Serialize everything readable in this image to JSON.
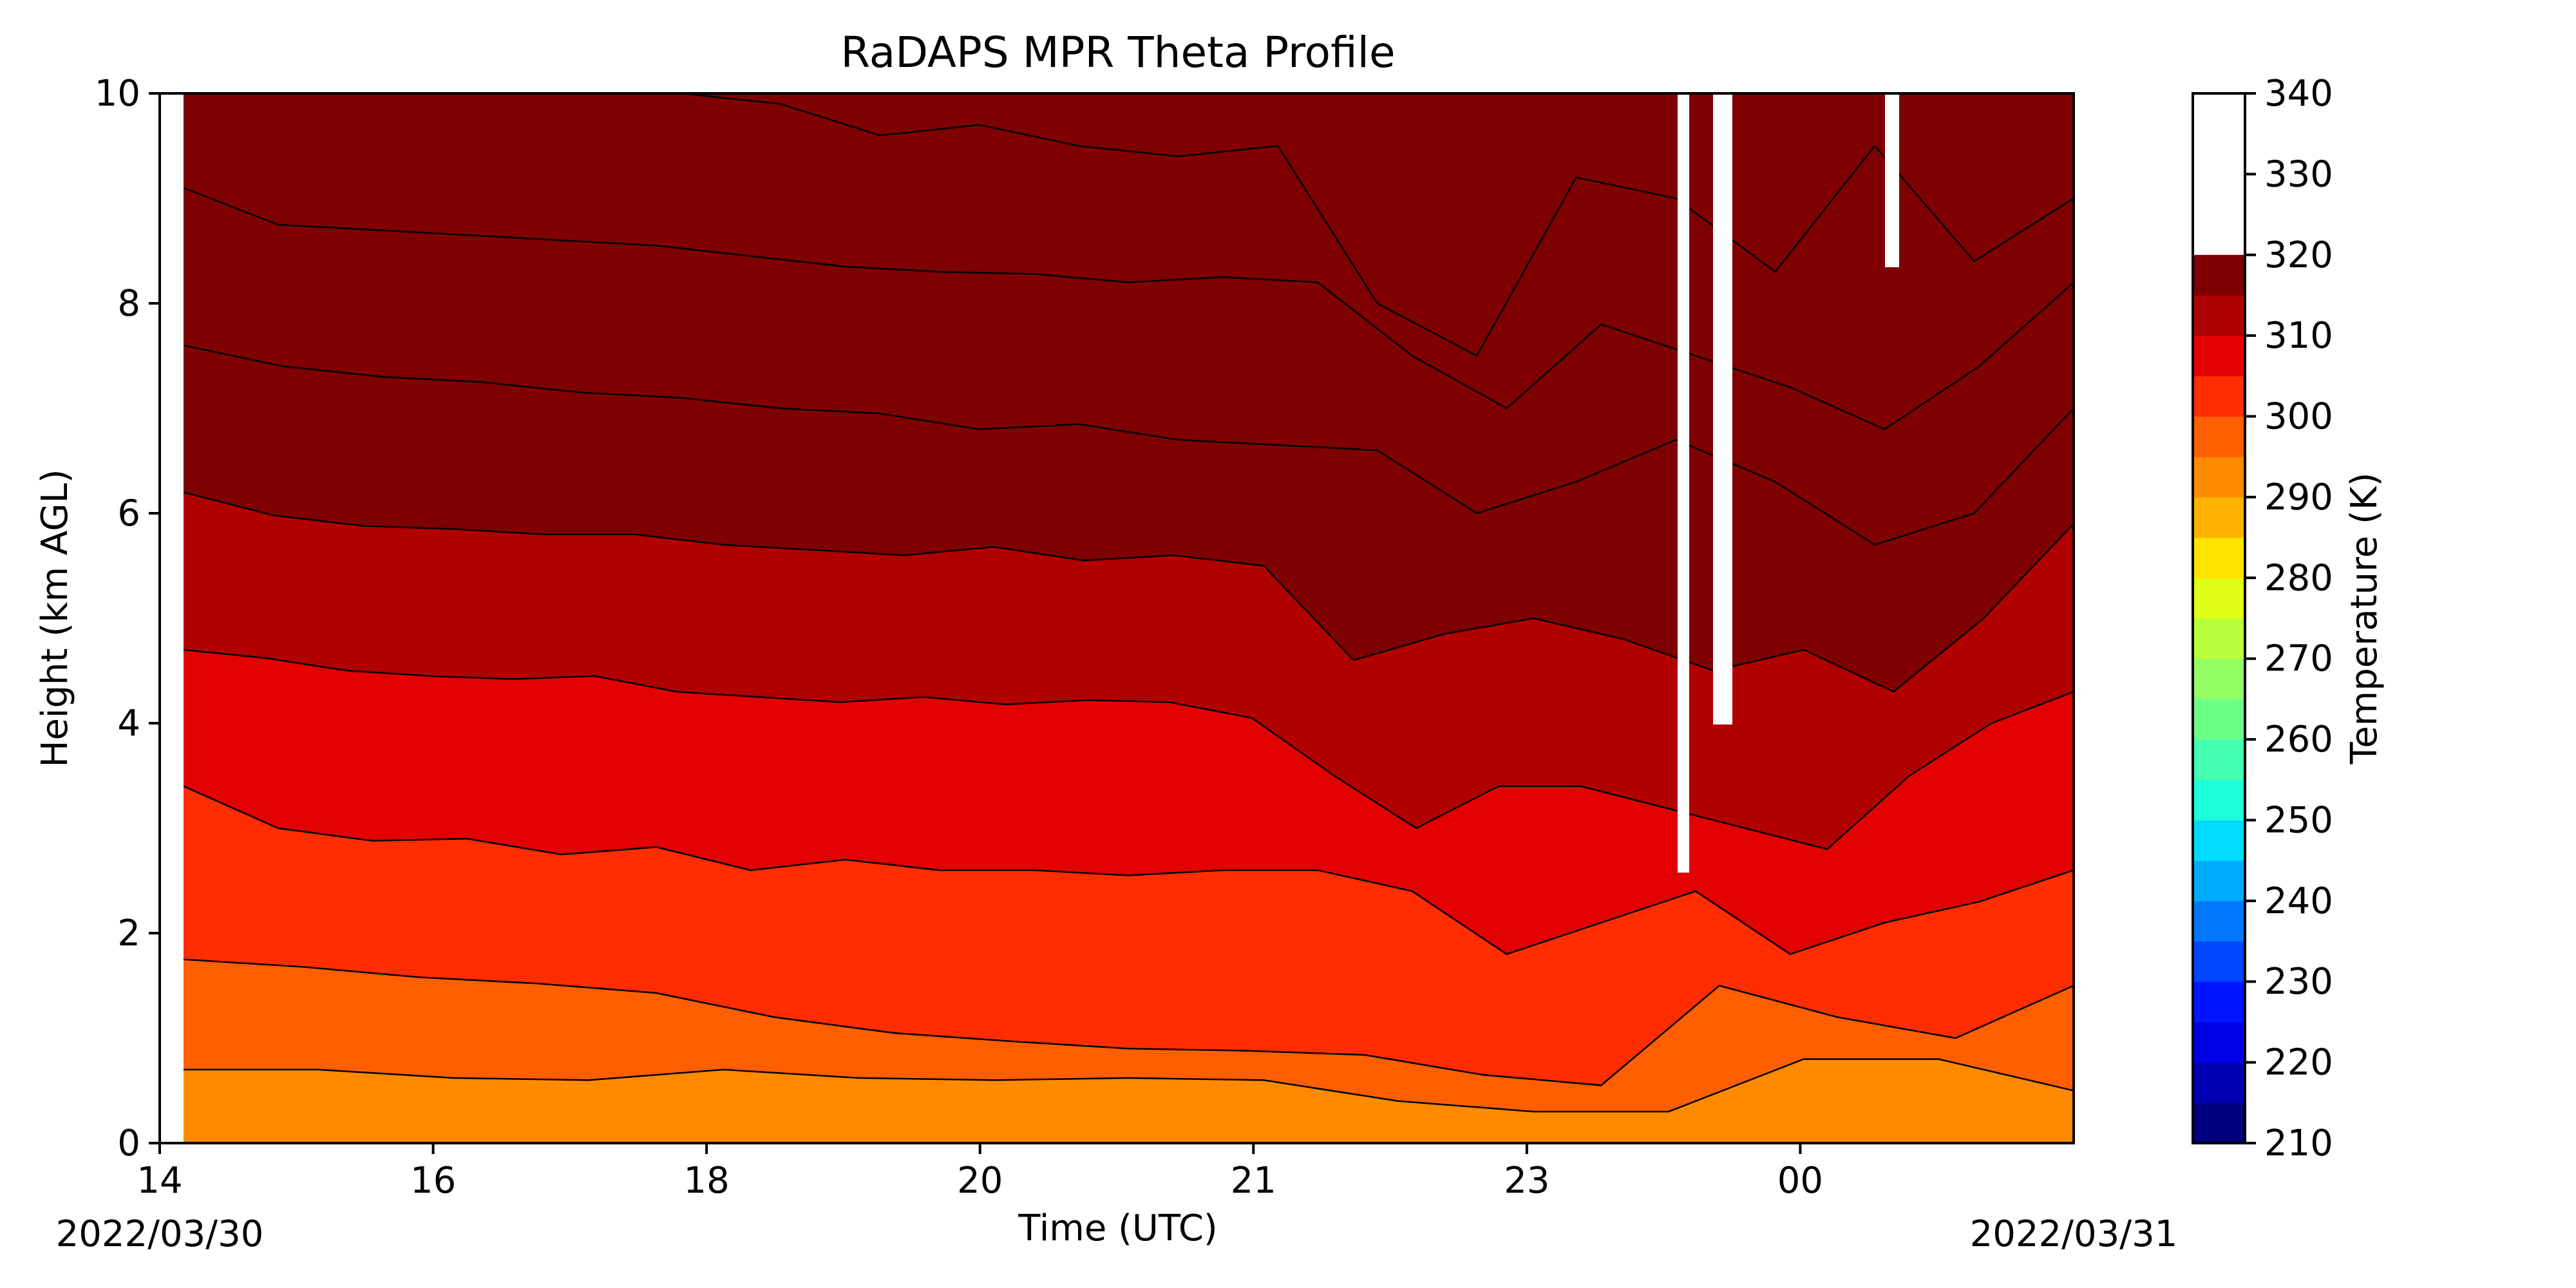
{
  "chart_data": {
    "type": "heatmap",
    "title": "RaDAPS MPR Theta Profile",
    "xlabel": "Time (UTC)",
    "ylabel": "Height (km AGL)",
    "x_ticks": [
      "14",
      "16",
      "18",
      "20",
      "21",
      "23",
      "00"
    ],
    "date_labels": {
      "start": "2022/03/30",
      "end": "2022/03/31"
    },
    "ylim": [
      0,
      10
    ],
    "y_ticks": [
      0,
      2,
      4,
      6,
      8,
      10
    ],
    "colorbar": {
      "label": "Temperature (K)",
      "range": [
        210,
        340
      ],
      "ticks": [
        210,
        220,
        230,
        240,
        250,
        260,
        270,
        280,
        290,
        300,
        310,
        320,
        330,
        340
      ],
      "step": 5,
      "colors": [
        "#00007f",
        "#0000b2",
        "#0000e5",
        "#0014ff",
        "#0045ff",
        "#0079ff",
        "#00abff",
        "#00dcfe",
        "#1dffda",
        "#44ffb2",
        "#6bff8a",
        "#92ff64",
        "#b9ff3c",
        "#e1ff16",
        "#ffe400",
        "#ffb200",
        "#ff8a00",
        "#ff5f00",
        "#ff2d00",
        "#e20000",
        "#b10000",
        "#7f0000"
      ]
    },
    "grid": false,
    "series": [
      {
        "level": 295,
        "height_km": [
          0.7,
          0.7,
          0.62,
          0.6,
          0.7,
          0.62,
          0.6,
          0.62,
          0.6,
          0.4,
          0.3,
          0.3,
          0.8,
          0.8,
          0.5
        ]
      },
      {
        "level": 300,
        "height_km": [
          1.75,
          1.68,
          1.58,
          1.52,
          1.43,
          1.2,
          1.05,
          0.97,
          0.9,
          0.88,
          0.84,
          0.65,
          0.55,
          1.5,
          1.2,
          1.0,
          1.5
        ]
      },
      {
        "level": 305,
        "height_km": [
          3.4,
          3.0,
          2.88,
          2.9,
          2.75,
          2.82,
          2.6,
          2.7,
          2.6,
          2.6,
          2.55,
          2.6,
          2.6,
          2.4,
          1.8,
          2.1,
          2.4,
          1.8,
          2.1,
          2.3,
          2.6
        ]
      },
      {
        "level": 310,
        "height_km": [
          4.7,
          4.62,
          4.5,
          4.45,
          4.42,
          4.45,
          4.3,
          4.25,
          4.2,
          4.25,
          4.18,
          4.22,
          4.2,
          4.05,
          3.5,
          3.0,
          3.4,
          3.4,
          3.2,
          3.0,
          2.8,
          3.5,
          4.0,
          4.3
        ]
      },
      {
        "level": 315,
        "height_km": [
          6.2,
          5.98,
          5.88,
          5.85,
          5.8,
          5.8,
          5.7,
          5.65,
          5.6,
          5.68,
          5.55,
          5.6,
          5.5,
          4.6,
          4.85,
          5.0,
          4.8,
          4.5,
          4.7,
          4.3,
          5.0,
          5.9
        ]
      },
      {
        "level": 320,
        "height_km": [
          7.6,
          7.4,
          7.3,
          7.25,
          7.15,
          7.1,
          7.0,
          6.95,
          6.8,
          6.85,
          6.7,
          6.65,
          6.6,
          6.0,
          6.3,
          6.7,
          6.3,
          5.7,
          6.0,
          7.0
        ]
      },
      {
        "level": 325,
        "height_km": [
          9.1,
          8.75,
          8.7,
          8.65,
          8.6,
          8.55,
          8.45,
          8.35,
          8.3,
          8.28,
          8.2,
          8.25,
          8.2,
          7.5,
          7.0,
          7.8,
          7.5,
          7.2,
          6.8,
          7.4,
          8.2
        ]
      },
      {
        "level": 330,
        "height_km": [
          10.0,
          10.0,
          10.0,
          10.0,
          10.0,
          10.0,
          9.9,
          9.6,
          9.7,
          9.5,
          9.4,
          9.5,
          8.0,
          7.5,
          9.2,
          9.0,
          8.3,
          9.5,
          8.4,
          9.0
        ]
      }
    ]
  }
}
